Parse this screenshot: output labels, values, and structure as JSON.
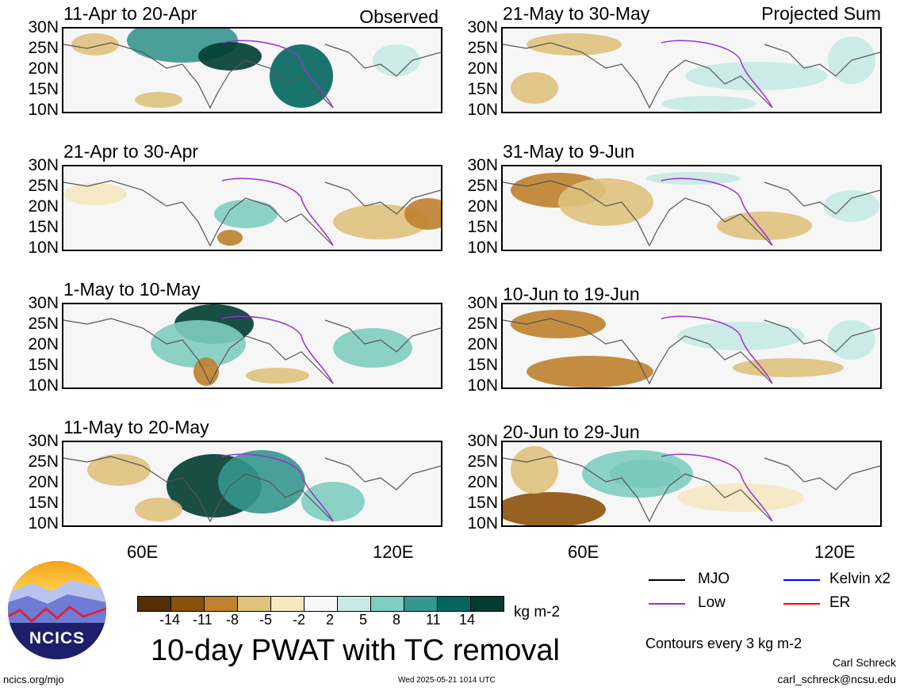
{
  "panels": [
    {
      "title": "11-Apr to 20-Apr",
      "corner": "Observed",
      "col": 0,
      "row": 0
    },
    {
      "title": "21-Apr to 30-Apr",
      "corner": "",
      "col": 0,
      "row": 1
    },
    {
      "title": "1-May to 10-May",
      "corner": "",
      "col": 0,
      "row": 2
    },
    {
      "title": "11-May to 20-May",
      "corner": "",
      "col": 0,
      "row": 3
    },
    {
      "title": "21-May to 30-May",
      "corner": "Projected Sum",
      "col": 1,
      "row": 0
    },
    {
      "title": "31-May to 9-Jun",
      "corner": "",
      "col": 1,
      "row": 1
    },
    {
      "title": "10-Jun to 19-Jun",
      "corner": "",
      "col": 1,
      "row": 2
    },
    {
      "title": "20-Jun to 29-Jun",
      "corner": "",
      "col": 1,
      "row": 3
    }
  ],
  "lat_labels": [
    "30N",
    "25N",
    "20N",
    "15N",
    "10N"
  ],
  "lon_labels": {
    "left": [
      "60E",
      "120E"
    ],
    "right": [
      "60E",
      "120E"
    ]
  },
  "colorbar": {
    "colors": [
      "#543005",
      "#8c510a",
      "#bf812d",
      "#dfc27d",
      "#f6e8c3",
      "#f7f7f7",
      "#c7eae5",
      "#80cdc1",
      "#35978f",
      "#01665e",
      "#003c30"
    ],
    "ticks": [
      "-14",
      "-11",
      "-8",
      "-5",
      "-2",
      "2",
      "5",
      "8",
      "11",
      "14"
    ],
    "units": "kg m-2"
  },
  "title": "10-day PWAT with TC removal",
  "legend": [
    {
      "label": "MJO",
      "color": "#000000"
    },
    {
      "label": "Kelvin x2",
      "color": "#0000ff"
    },
    {
      "label": "Low",
      "color": "#9932cc"
    },
    {
      "label": "ER",
      "color": "#ff0000"
    }
  ],
  "contours_note": "Contours every 3 kg m-2",
  "logo_text": "NCICS",
  "footer": {
    "url": "ncics.org/mjo",
    "timestamp": "Wed 2025-05-21 1014 UTC",
    "author": "Carl Schreck",
    "email": "carl_schreck@ncsu.edu"
  }
}
